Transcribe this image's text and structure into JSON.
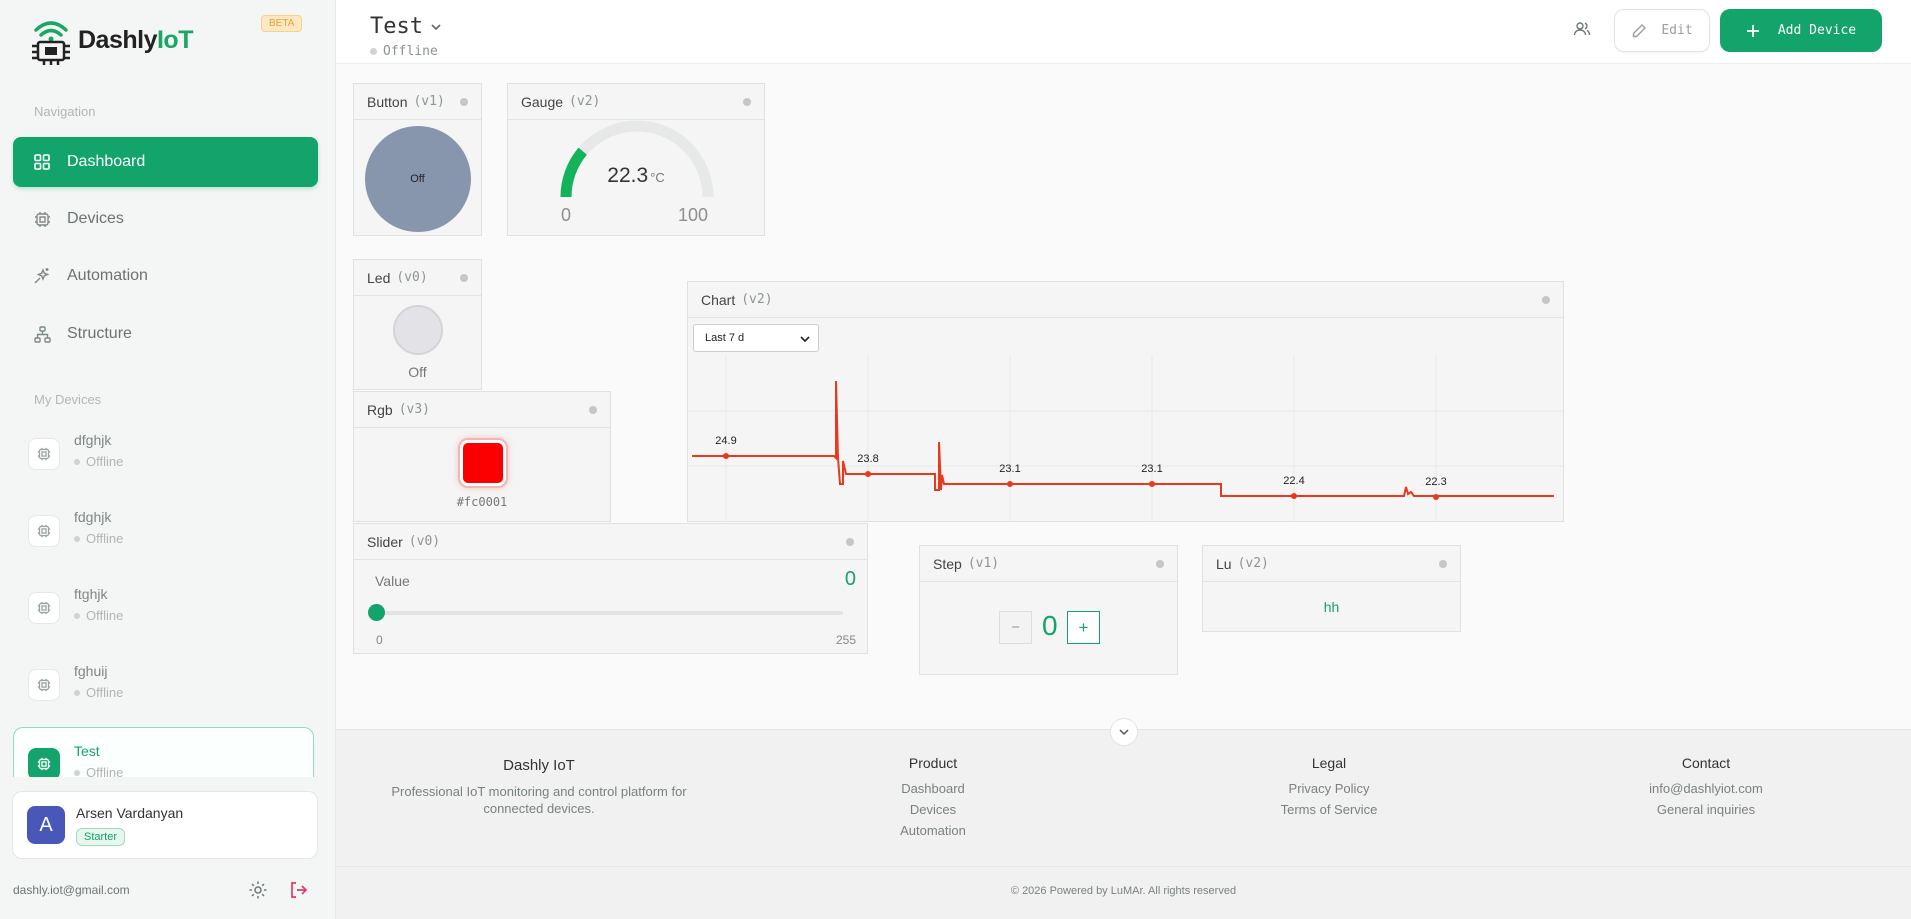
{
  "brand": {
    "name_main": "Dashly",
    "name_accent": "IoT",
    "beta": "BETA"
  },
  "sidebar": {
    "nav_label": "Navigation",
    "nav": [
      {
        "label": "Dashboard",
        "icon": "dashboard-icon"
      },
      {
        "label": "Devices",
        "icon": "chip-icon"
      },
      {
        "label": "Automation",
        "icon": "sparkles-icon"
      },
      {
        "label": "Structure",
        "icon": "hierarchy-icon"
      }
    ],
    "devices_label": "My Devices",
    "devices": [
      {
        "name": "dfghjk",
        "status": "Offline"
      },
      {
        "name": "fdghjk",
        "status": "Offline"
      },
      {
        "name": "ftghjk",
        "status": "Offline"
      },
      {
        "name": "fghuij",
        "status": "Offline"
      }
    ],
    "active_device": {
      "name": "Test",
      "status": "Offline"
    },
    "user": {
      "initial": "A",
      "name": "Arsen Vardanyan",
      "plan": "Starter",
      "email": "dashly.iot@gmail.com"
    }
  },
  "header": {
    "title": "Test",
    "status": "Offline",
    "edit_label": "Edit",
    "add_label": "Add Device"
  },
  "widgets": {
    "button": {
      "title": "Button",
      "pin": "(v1)",
      "state": "Off"
    },
    "gauge": {
      "title": "Gauge",
      "pin": "(v2)",
      "value": "22.3",
      "unit": "°C",
      "min": "0",
      "max": "100",
      "fraction": 0.223
    },
    "led": {
      "title": "Led",
      "pin": "(v0)",
      "state": "Off"
    },
    "rgb": {
      "title": "Rgb",
      "pin": "(v3)",
      "hex": "#fc0001",
      "color": "#fc0001"
    },
    "slider": {
      "title": "Slider",
      "pin": "(v0)",
      "label": "Value",
      "value": "0",
      "min": "0",
      "max": "255"
    },
    "chart": {
      "title": "Chart",
      "pin": "(v2)",
      "range_selected": "Last 7 d"
    },
    "step": {
      "title": "Step",
      "pin": "(v1)",
      "value": "0",
      "minus": "−",
      "plus": "+"
    },
    "lu": {
      "title": "Lu",
      "pin": "(v2)",
      "value": "hh"
    }
  },
  "chart_data": {
    "type": "line",
    "color": "#e8391f",
    "labels": [
      {
        "x": 1,
        "y": 24.9,
        "label": "24.9"
      },
      {
        "x": 2,
        "y": 23.8,
        "label": "23.8"
      },
      {
        "x": 3,
        "y": 23.1,
        "label": "23.1"
      },
      {
        "x": 4,
        "y": 23.1,
        "label": "23.1"
      },
      {
        "x": 5,
        "y": 22.4,
        "label": "22.4"
      },
      {
        "x": 6,
        "y": 22.3,
        "label": "22.3"
      }
    ]
  },
  "footer": {
    "brand": "Dashly IoT",
    "tagline_1": "Professional IoT monitoring and control platform for",
    "tagline_2": "connected devices.",
    "product_title": "Product",
    "product_links": [
      "Dashboard",
      "Devices",
      "Automation"
    ],
    "legal_title": "Legal",
    "legal_links": [
      "Privacy Policy",
      "Terms of Service"
    ],
    "contact_title": "Contact",
    "contact_links": [
      "info@dashlyiot.com",
      "General inquiries"
    ],
    "copyright": "© 2026 Powered by LuMAr. All rights reserved"
  },
  "colors": {
    "accent": "#12a46a",
    "user_avatar": "#4857b8",
    "chart_line": "#e8391f"
  }
}
